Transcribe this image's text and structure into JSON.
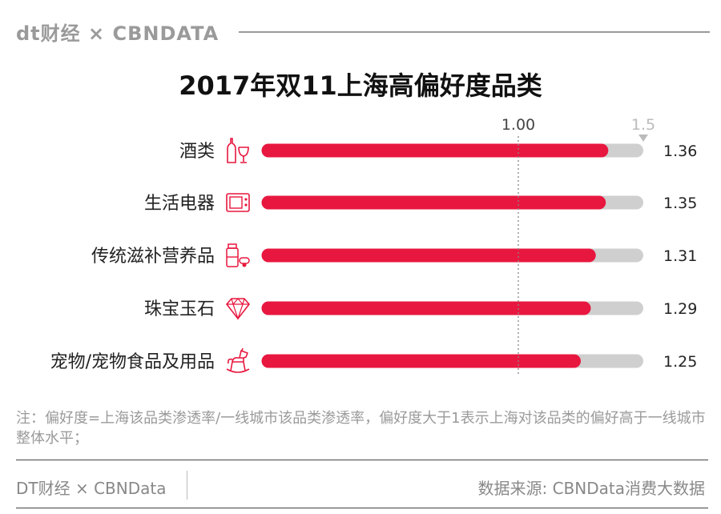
{
  "brand": {
    "text": "dt财经 × CBNDATA"
  },
  "colors": {
    "bar": "#e8173f",
    "track": "#cfcfcf",
    "reference": "#888888",
    "icon": "#e8173f"
  },
  "chart_data": {
    "type": "bar",
    "orientation": "horizontal",
    "title": "2017年双11上海高偏好度品类",
    "categories": [
      "酒类",
      "生活电器",
      "传统滋补营养品",
      "珠宝玉石",
      "宠物/宠物食品及用品"
    ],
    "values": [
      1.36,
      1.35,
      1.31,
      1.29,
      1.25
    ],
    "value_labels": [
      "1.36",
      "1.35",
      "1.31",
      "1.29",
      "1.25"
    ],
    "icons": [
      "wine-icon",
      "microwave-icon",
      "supplement-icon",
      "diamond-icon",
      "rocking-horse-icon"
    ],
    "xlim": [
      0,
      1.5
    ],
    "reference_line": {
      "value": 1.0,
      "label": "1.00"
    },
    "max_label": "1.5",
    "grid": false,
    "legend": "none"
  },
  "note": "注：偏好度=上海该品类渗透率/一线城市该品类渗透率，偏好度大于1表示上海对该品类的偏好高于一线城市整体水平；",
  "footer": {
    "left": "DT财经 × CBNData",
    "right": "数据来源: CBNData消费大数据"
  }
}
